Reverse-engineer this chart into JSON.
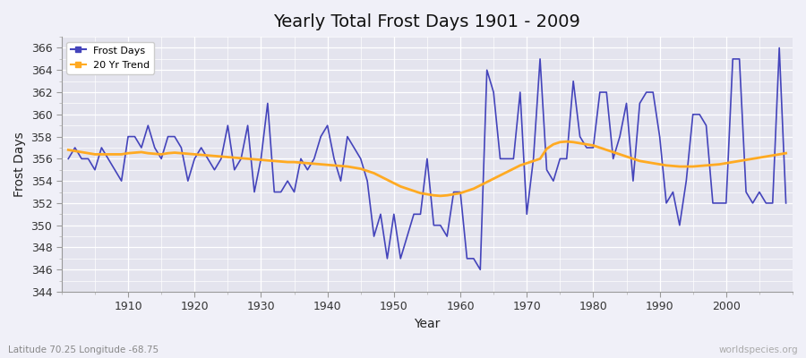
{
  "title": "Yearly Total Frost Days 1901 - 2009",
  "xlabel": "Year",
  "ylabel": "Frost Days",
  "lat_lon_label": "Latitude 70.25 Longitude -68.75",
  "watermark": "worldspecies.org",
  "legend_labels": [
    "Frost Days",
    "20 Yr Trend"
  ],
  "frost_color": "#4444bb",
  "trend_color": "#ffaa22",
  "background_color": "#f0f0f8",
  "plot_bg_color": "#e4e4ee",
  "grid_color": "#ffffff",
  "ylim": [
    344,
    367
  ],
  "yticks": [
    344,
    346,
    348,
    350,
    352,
    354,
    356,
    358,
    360,
    362,
    364,
    366
  ],
  "years": [
    1901,
    1902,
    1903,
    1904,
    1905,
    1906,
    1907,
    1908,
    1909,
    1910,
    1911,
    1912,
    1913,
    1914,
    1915,
    1916,
    1917,
    1918,
    1919,
    1920,
    1921,
    1922,
    1923,
    1924,
    1925,
    1926,
    1927,
    1928,
    1929,
    1930,
    1931,
    1932,
    1933,
    1934,
    1935,
    1936,
    1937,
    1938,
    1939,
    1940,
    1941,
    1942,
    1943,
    1944,
    1945,
    1946,
    1947,
    1948,
    1949,
    1950,
    1951,
    1952,
    1953,
    1954,
    1955,
    1956,
    1957,
    1958,
    1959,
    1960,
    1961,
    1962,
    1963,
    1964,
    1965,
    1966,
    1967,
    1968,
    1969,
    1970,
    1971,
    1972,
    1973,
    1974,
    1975,
    1976,
    1977,
    1978,
    1979,
    1980,
    1981,
    1982,
    1983,
    1984,
    1985,
    1986,
    1987,
    1988,
    1989,
    1990,
    1991,
    1992,
    1993,
    1994,
    1995,
    1996,
    1997,
    1998,
    1999,
    2000,
    2001,
    2002,
    2003,
    2004,
    2005,
    2006,
    2007,
    2008,
    2009
  ],
  "frost_days": [
    356,
    357,
    356,
    356,
    355,
    357,
    356,
    355,
    354,
    358,
    358,
    357,
    359,
    357,
    356,
    358,
    358,
    357,
    354,
    356,
    357,
    356,
    355,
    356,
    359,
    355,
    356,
    359,
    353,
    356,
    361,
    353,
    353,
    354,
    353,
    356,
    355,
    356,
    358,
    359,
    356,
    354,
    358,
    357,
    356,
    354,
    349,
    351,
    347,
    351,
    347,
    349,
    351,
    351,
    356,
    350,
    350,
    349,
    353,
    353,
    347,
    347,
    346,
    364,
    362,
    356,
    356,
    356,
    362,
    351,
    356,
    365,
    355,
    354,
    356,
    356,
    363,
    358,
    357,
    357,
    362,
    362,
    356,
    358,
    361,
    354,
    361,
    362,
    362,
    358,
    352,
    353,
    350,
    354,
    360,
    360,
    359,
    352,
    352,
    352,
    365,
    365,
    353,
    352,
    353,
    352,
    352,
    366,
    352
  ],
  "trend_data": [
    356.8,
    356.7,
    356.6,
    356.5,
    356.4,
    356.4,
    356.4,
    356.4,
    356.4,
    356.5,
    356.55,
    356.6,
    356.5,
    356.45,
    356.4,
    356.5,
    356.55,
    356.5,
    356.45,
    356.4,
    356.35,
    356.3,
    356.25,
    356.2,
    356.15,
    356.1,
    356.05,
    356.0,
    355.95,
    355.9,
    355.85,
    355.8,
    355.75,
    355.7,
    355.7,
    355.65,
    355.6,
    355.55,
    355.5,
    355.45,
    355.4,
    355.35,
    355.3,
    355.2,
    355.1,
    354.9,
    354.7,
    354.4,
    354.1,
    353.8,
    353.5,
    353.3,
    353.1,
    352.9,
    352.8,
    352.7,
    352.65,
    352.7,
    352.8,
    352.9,
    353.1,
    353.3,
    353.6,
    353.9,
    354.2,
    354.5,
    354.8,
    355.1,
    355.4,
    355.6,
    355.8,
    356.0,
    356.9,
    357.3,
    357.5,
    357.55,
    357.5,
    357.4,
    357.3,
    357.2,
    357.0,
    356.8,
    356.6,
    356.4,
    356.2,
    356.0,
    355.8,
    355.7,
    355.6,
    355.5,
    355.4,
    355.35,
    355.3,
    355.3,
    355.3,
    355.35,
    355.4,
    355.45,
    355.5,
    355.6,
    355.7,
    355.8,
    355.9,
    356.0,
    356.1,
    356.2,
    356.3,
    356.4,
    356.5
  ]
}
